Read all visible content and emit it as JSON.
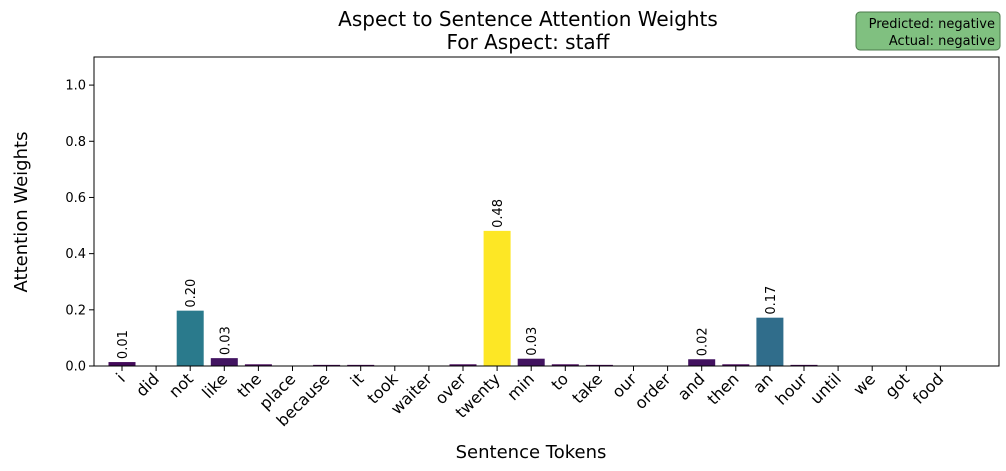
{
  "chart_data": {
    "type": "bar",
    "title": "Aspect to Sentence Attention Weights",
    "subtitle": "For Aspect: staff",
    "xlabel": "Sentence Tokens",
    "ylabel": "Attention Weights",
    "ylim": [
      0,
      1.1
    ],
    "yticks": [
      "0.0",
      "0.2",
      "0.4",
      "0.6",
      "0.8",
      "1.0"
    ],
    "categories": [
      "i",
      "did",
      "not",
      "like",
      "the",
      "place",
      "because",
      "it",
      "took",
      "waiter",
      "over",
      "twenty",
      "min",
      "to",
      "take",
      "our",
      "order",
      "and",
      "then",
      "an",
      "hour",
      "until",
      "we",
      "got",
      "food"
    ],
    "values": [
      0.014,
      0.0,
      0.197,
      0.028,
      0.006,
      0.0,
      0.004,
      0.004,
      0.0,
      0.0,
      0.006,
      0.481,
      0.026,
      0.006,
      0.004,
      0.0,
      0.0,
      0.024,
      0.006,
      0.172,
      0.004,
      0.0,
      0.0,
      0.0,
      0.0
    ],
    "data_labels": [
      "0.01",
      "",
      "0.20",
      "0.03",
      "",
      "",
      "",
      "",
      "",
      "",
      "",
      "0.48",
      "0.03",
      "",
      "",
      "",
      "",
      "0.02",
      "",
      "0.17",
      "",
      "",
      "",
      "",
      ""
    ],
    "colormap": "viridis",
    "grid": false,
    "colors": {
      "low": "#440154",
      "mid_low": "#2a788e",
      "mid": "#2d6f8e",
      "high": "#fde725"
    },
    "annotation": {
      "predicted": "Predicted: negative",
      "actual": "Actual: negative",
      "background": "#80c080",
      "border": "#4a7a4a"
    }
  }
}
